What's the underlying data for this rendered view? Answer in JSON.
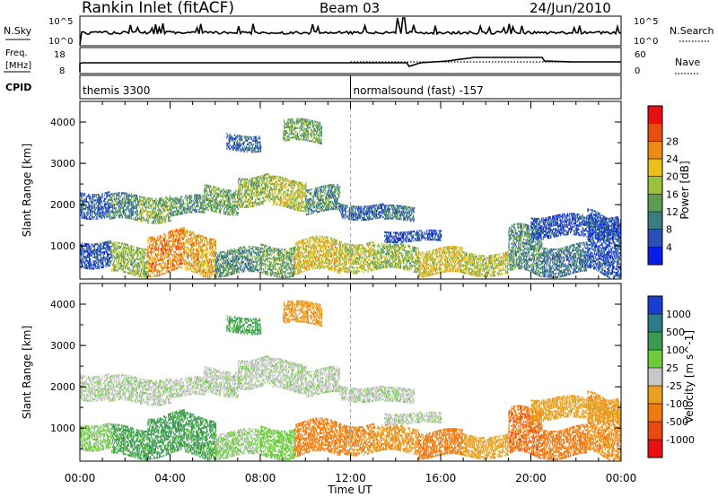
{
  "header": {
    "title": "Rankin Inlet (fitACF)",
    "beam": "Beam 03",
    "date": "24/Jun/2010"
  },
  "nsky_panel": {
    "left_label": "N.Sky",
    "left_tick_top": "10^5",
    "left_tick_bottom": "10^0",
    "right_tick_top": "10^5",
    "right_tick_bottom": "10^0",
    "right_label": "N.Search"
  },
  "freq_panel": {
    "left_label_line1": "Freq.",
    "left_label_line2": "[MHz]",
    "left_tick_top": "18",
    "left_tick_bottom": "8",
    "right_tick_top": "60",
    "right_tick_bottom": "0",
    "right_label": "Nave"
  },
  "cpid_panel": {
    "label": "CPID",
    "segments": [
      {
        "start_hour": 0.0,
        "text": "themis 3300"
      },
      {
        "start_hour": 12.0,
        "text": "normalsound (fast) -157"
      }
    ]
  },
  "time_axis": {
    "label": "Time UT",
    "ticks": [
      "00:00",
      "04:00",
      "08:00",
      "12:00",
      "16:00",
      "20:00",
      "00:00"
    ],
    "range_hours": [
      0,
      24
    ]
  },
  "power_panel": {
    "ylabel": "Slant Range [km]",
    "yticks": [
      "1000",
      "2000",
      "3000",
      "4000"
    ],
    "colorbar_label": "Power [dB]",
    "colorbar_ticks": [
      "4",
      "8",
      "12",
      "16",
      "20",
      "24",
      "28"
    ],
    "colors": [
      "#0a1de8",
      "#2b4fb5",
      "#3a7e7e",
      "#5e9c55",
      "#9bc23c",
      "#e8c21a",
      "#f08a14",
      "#e84e10",
      "#e81010"
    ]
  },
  "velocity_panel": {
    "ylabel": "Slant Range [km]",
    "yticks": [
      "1000",
      "2000",
      "3000",
      "4000"
    ],
    "colorbar_label": "Velocity [m s^-1]",
    "colorbar_ticks": [
      "1000",
      "500",
      "100",
      "25",
      "-25",
      "-100",
      "-500",
      "-1000"
    ],
    "colors": [
      "#1a3fd0",
      "#2f7a8a",
      "#3a9a50",
      "#6ccc3c",
      "#c8c8c8",
      "#e8a020",
      "#f07a10",
      "#e84a10",
      "#e81010"
    ]
  },
  "chart_data": {
    "type": "heatmap",
    "title": "Rankin Inlet (fitACF)",
    "subtitle": "Beam 03",
    "xlabel": "Time UT",
    "ylabel": "Slant Range [km]",
    "xlim": [
      0,
      24
    ],
    "ylim": [
      200,
      4500
    ],
    "series": [
      {
        "name": "Power [dB]",
        "clim": [
          0,
          30
        ]
      },
      {
        "name": "Velocity [m s^-1]",
        "clim": [
          -1000,
          1000
        ]
      }
    ],
    "scatter_regions": [
      {
        "t0": 0.0,
        "t1": 1.3,
        "r0": 1700,
        "r1": 2300,
        "power": 6,
        "velocity": 10
      },
      {
        "t0": 1.3,
        "t1": 2.6,
        "r0": 1600,
        "r1": 2200,
        "power": 9,
        "velocity": 10
      },
      {
        "t0": 2.6,
        "t1": 4.0,
        "r0": 1600,
        "r1": 2200,
        "power": 13,
        "velocity": 10
      },
      {
        "t0": 4.0,
        "t1": 5.5,
        "r0": 1750,
        "r1": 2200,
        "power": 10,
        "velocity": 10
      },
      {
        "t0": 5.5,
        "t1": 7.0,
        "r0": 1800,
        "r1": 2400,
        "power": 12,
        "velocity": 10
      },
      {
        "t0": 7.0,
        "t1": 8.5,
        "r0": 2000,
        "r1": 2700,
        "power": 14,
        "velocity": 10
      },
      {
        "t0": 8.5,
        "t1": 10.0,
        "r0": 1900,
        "r1": 2600,
        "power": 16,
        "velocity": 10
      },
      {
        "t0": 10.0,
        "t1": 11.5,
        "r0": 1800,
        "r1": 2400,
        "power": 10,
        "velocity": 10
      },
      {
        "t0": 11.5,
        "t1": 13.5,
        "r0": 1650,
        "r1": 2000,
        "power": 6,
        "velocity": 10
      },
      {
        "t0": 13.5,
        "t1": 14.8,
        "r0": 1600,
        "r1": 1950,
        "power": 8,
        "velocity": 10
      },
      {
        "t0": 6.5,
        "t1": 8.0,
        "r0": 3300,
        "r1": 3700,
        "power": 7,
        "velocity": 150
      },
      {
        "t0": 9.0,
        "t1": 10.7,
        "r0": 3500,
        "r1": 4000,
        "power": 12,
        "velocity": -80
      },
      {
        "t0": 0.0,
        "t1": 1.4,
        "r0": 500,
        "r1": 1100,
        "power": 5,
        "velocity": 40
      },
      {
        "t0": 1.4,
        "t1": 3.0,
        "r0": 300,
        "r1": 1000,
        "power": 14,
        "velocity": 150
      },
      {
        "t0": 3.0,
        "t1": 4.6,
        "r0": 350,
        "r1": 1300,
        "power": 22,
        "velocity": 180
      },
      {
        "t0": 4.6,
        "t1": 6.0,
        "r0": 300,
        "r1": 1250,
        "power": 20,
        "velocity": 150
      },
      {
        "t0": 6.0,
        "t1": 8.0,
        "r0": 300,
        "r1": 900,
        "power": 10,
        "velocity": 30
      },
      {
        "t0": 8.0,
        "t1": 9.5,
        "r0": 300,
        "r1": 1000,
        "power": 12,
        "velocity": 60
      },
      {
        "t0": 9.5,
        "t1": 11.5,
        "r0": 350,
        "r1": 1150,
        "power": 18,
        "velocity": -150
      },
      {
        "t0": 11.5,
        "t1": 13.0,
        "r0": 400,
        "r1": 1100,
        "power": 16,
        "velocity": -120
      },
      {
        "t0": 13.0,
        "t1": 15.0,
        "r0": 400,
        "r1": 1000,
        "power": 14,
        "velocity": -80
      },
      {
        "t0": 15.0,
        "t1": 17.0,
        "r0": 300,
        "r1": 900,
        "power": 18,
        "velocity": -200
      },
      {
        "t0": 17.0,
        "t1": 19.0,
        "r0": 300,
        "r1": 800,
        "power": 16,
        "velocity": -60
      },
      {
        "t0": 19.0,
        "t1": 20.5,
        "r0": 300,
        "r1": 1400,
        "power": 10,
        "velocity": -400
      },
      {
        "t0": 20.5,
        "t1": 22.5,
        "r0": 300,
        "r1": 1000,
        "power": 8,
        "velocity": -200
      },
      {
        "t0": 22.5,
        "t1": 24.0,
        "r0": 300,
        "r1": 1700,
        "power": 5,
        "velocity": -100
      },
      {
        "t0": 13.5,
        "t1": 16.0,
        "r0": 1100,
        "r1": 1350,
        "power": 5,
        "velocity": 10
      },
      {
        "t0": 20.0,
        "t1": 24.0,
        "r0": 1200,
        "r1": 1700,
        "power": 5,
        "velocity": -60
      }
    ]
  }
}
